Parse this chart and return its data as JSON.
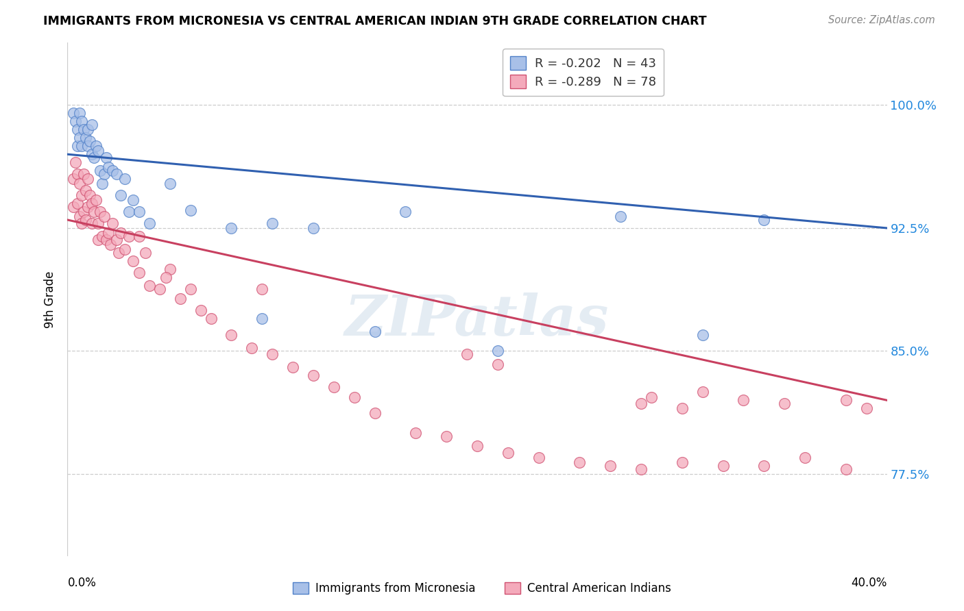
{
  "title": "IMMIGRANTS FROM MICRONESIA VS CENTRAL AMERICAN INDIAN 9TH GRADE CORRELATION CHART",
  "source": "Source: ZipAtlas.com",
  "ylabel": "9th Grade",
  "ytick_labels": [
    "77.5%",
    "85.0%",
    "92.5%",
    "100.0%"
  ],
  "ytick_values": [
    0.775,
    0.85,
    0.925,
    1.0
  ],
  "xlim": [
    0.0,
    0.4
  ],
  "ylim": [
    0.725,
    1.038
  ],
  "legend_blue_label": "R = -0.202   N = 43",
  "legend_pink_label": "R = -0.289   N = 78",
  "watermark": "ZIPatlas",
  "blue_face": "#A8C0E8",
  "pink_face": "#F4AABB",
  "blue_edge": "#5080C8",
  "pink_edge": "#D05070",
  "blue_line": "#3060B0",
  "pink_line": "#C84060",
  "blue_line_x": [
    0.0,
    0.4
  ],
  "blue_line_y": [
    0.97,
    0.925
  ],
  "pink_line_x": [
    0.0,
    0.4
  ],
  "pink_line_y": [
    0.93,
    0.82
  ],
  "blue_x": [
    0.003,
    0.004,
    0.005,
    0.005,
    0.006,
    0.006,
    0.007,
    0.007,
    0.008,
    0.009,
    0.01,
    0.01,
    0.011,
    0.012,
    0.012,
    0.013,
    0.014,
    0.015,
    0.016,
    0.017,
    0.018,
    0.019,
    0.02,
    0.022,
    0.024,
    0.026,
    0.028,
    0.03,
    0.032,
    0.035,
    0.04,
    0.05,
    0.06,
    0.08,
    0.095,
    0.1,
    0.12,
    0.15,
    0.165,
    0.21,
    0.27,
    0.31,
    0.34
  ],
  "blue_y": [
    0.995,
    0.99,
    0.985,
    0.975,
    0.995,
    0.98,
    0.99,
    0.975,
    0.985,
    0.98,
    0.975,
    0.985,
    0.978,
    0.988,
    0.97,
    0.968,
    0.975,
    0.972,
    0.96,
    0.952,
    0.958,
    0.968,
    0.962,
    0.96,
    0.958,
    0.945,
    0.955,
    0.935,
    0.942,
    0.935,
    0.928,
    0.952,
    0.936,
    0.925,
    0.87,
    0.928,
    0.925,
    0.862,
    0.935,
    0.85,
    0.932,
    0.86,
    0.93
  ],
  "pink_x": [
    0.003,
    0.003,
    0.004,
    0.005,
    0.005,
    0.006,
    0.006,
    0.007,
    0.007,
    0.008,
    0.008,
    0.009,
    0.009,
    0.01,
    0.01,
    0.011,
    0.012,
    0.012,
    0.013,
    0.014,
    0.015,
    0.015,
    0.016,
    0.017,
    0.018,
    0.019,
    0.02,
    0.021,
    0.022,
    0.024,
    0.025,
    0.026,
    0.028,
    0.03,
    0.032,
    0.035,
    0.038,
    0.04,
    0.045,
    0.05,
    0.055,
    0.06,
    0.065,
    0.07,
    0.08,
    0.09,
    0.1,
    0.11,
    0.12,
    0.13,
    0.14,
    0.15,
    0.17,
    0.185,
    0.2,
    0.215,
    0.23,
    0.25,
    0.265,
    0.28,
    0.3,
    0.32,
    0.34,
    0.36,
    0.38,
    0.28,
    0.285,
    0.3,
    0.31,
    0.33,
    0.35,
    0.38,
    0.39,
    0.195,
    0.21,
    0.095,
    0.035,
    0.048
  ],
  "pink_y": [
    0.955,
    0.938,
    0.965,
    0.958,
    0.94,
    0.952,
    0.932,
    0.945,
    0.928,
    0.958,
    0.935,
    0.948,
    0.93,
    0.955,
    0.938,
    0.945,
    0.94,
    0.928,
    0.935,
    0.942,
    0.928,
    0.918,
    0.935,
    0.92,
    0.932,
    0.918,
    0.922,
    0.915,
    0.928,
    0.918,
    0.91,
    0.922,
    0.912,
    0.92,
    0.905,
    0.898,
    0.91,
    0.89,
    0.888,
    0.9,
    0.882,
    0.888,
    0.875,
    0.87,
    0.86,
    0.852,
    0.848,
    0.84,
    0.835,
    0.828,
    0.822,
    0.812,
    0.8,
    0.798,
    0.792,
    0.788,
    0.785,
    0.782,
    0.78,
    0.778,
    0.782,
    0.78,
    0.78,
    0.785,
    0.778,
    0.818,
    0.822,
    0.815,
    0.825,
    0.82,
    0.818,
    0.82,
    0.815,
    0.848,
    0.842,
    0.888,
    0.92,
    0.895
  ]
}
